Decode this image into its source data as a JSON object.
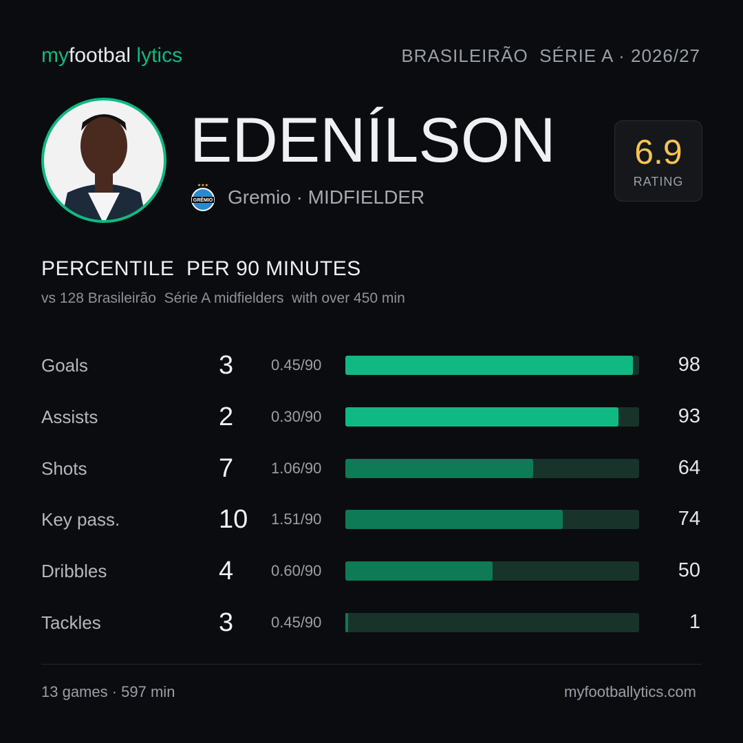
{
  "header": {
    "logo": [
      "my",
      "footbal",
      "lytics"
    ],
    "competition": "BRASILEIRÃO  SÉRIE A · 2026/27"
  },
  "player": {
    "name": "EDENÍLSON",
    "club": "Gremio · MIDFIELDER",
    "badge_text": "GRÊMIO",
    "rating": "6.9",
    "rating_label": "RATING"
  },
  "section": {
    "title": "PERCENTILE  PER 90 MINUTES",
    "subtitle": "vs 128 Brasileirão  Série A midfielders  with over 450 min"
  },
  "chart_data": {
    "type": "bar",
    "orientation": "horizontal",
    "categories": [
      "Goals",
      "Assists",
      "Shots",
      "Key pass.",
      "Dribbles",
      "Tackles"
    ],
    "totals": [
      3,
      2,
      7,
      10,
      4,
      3
    ],
    "per90": [
      "0.45/90",
      "0.30/90",
      "1.06/90",
      "1.51/90",
      "0.60/90",
      "0.45/90"
    ],
    "values": [
      98,
      93,
      64,
      74,
      50,
      1
    ],
    "colors": [
      "#10b981",
      "#10b981",
      "#0e7a56",
      "#0e7a56",
      "#0e7a56",
      "#0e7a56"
    ],
    "track_color": "#18342a",
    "xlim": [
      0,
      100
    ]
  },
  "footer": {
    "games": "13 games · 597 min",
    "site": "myfootballytics.com"
  }
}
